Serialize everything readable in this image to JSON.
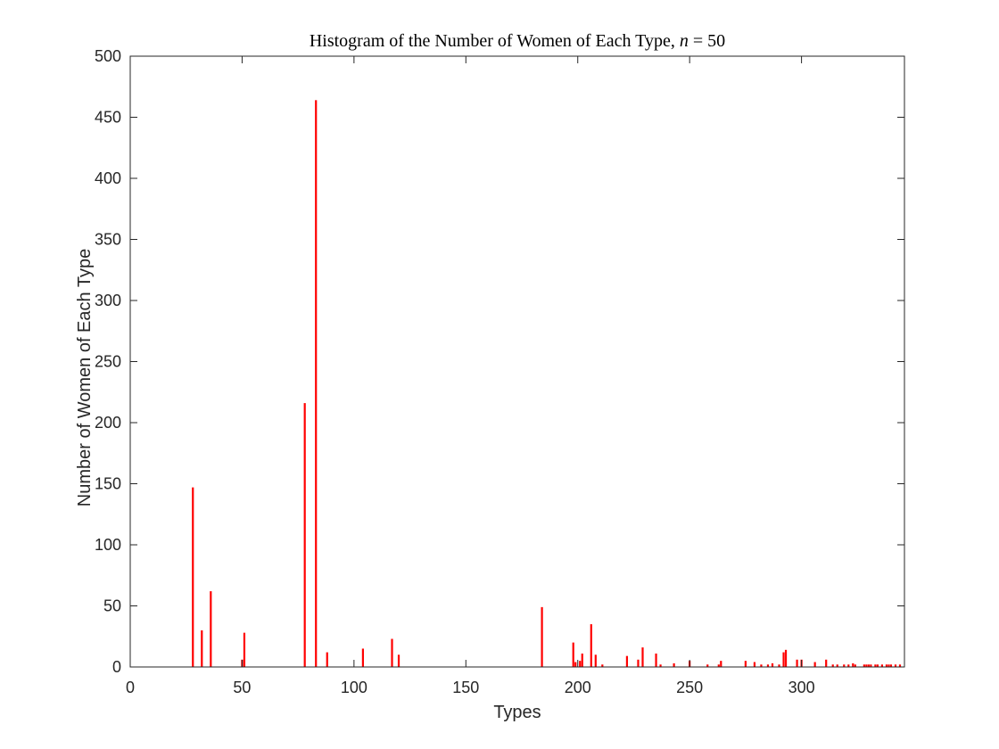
{
  "chart_data": {
    "type": "bar",
    "title_prefix": "Histogram of the Number of Women of Each Type, ",
    "title_var": "n",
    "title_eq": " = 50",
    "xlabel": "Types",
    "ylabel": "Number of Women of Each Type",
    "xlim": [
      0,
      346
    ],
    "ylim": [
      0,
      500
    ],
    "xticks": [
      0,
      50,
      100,
      150,
      200,
      250,
      300
    ],
    "yticks": [
      0,
      50,
      100,
      150,
      200,
      250,
      300,
      350,
      400,
      450,
      500
    ],
    "bar_color": "#ff0000",
    "grid": false,
    "x": [
      28,
      32,
      36,
      50,
      51,
      78,
      83,
      88,
      104,
      117,
      120,
      184,
      198,
      199,
      201,
      202,
      206,
      208,
      211,
      222,
      227,
      229,
      235,
      237,
      243,
      250,
      258,
      263,
      264,
      275,
      279,
      282,
      285,
      287,
      290,
      292,
      293,
      298,
      300,
      306,
      311,
      314,
      316,
      319,
      321,
      323,
      324,
      328,
      329,
      330,
      331,
      333,
      334,
      336,
      338,
      339,
      340,
      342,
      344
    ],
    "values": [
      147,
      30,
      62,
      6,
      28,
      216,
      464,
      12,
      15,
      23,
      10,
      49,
      20,
      4,
      5,
      11,
      35,
      10,
      2,
      9,
      6,
      16,
      11,
      2,
      3,
      5,
      2,
      2,
      5,
      5,
      4,
      2,
      2,
      3,
      2,
      12,
      14,
      6,
      6,
      4,
      6,
      2,
      2,
      2,
      2,
      3,
      2,
      2,
      2,
      2,
      2,
      2,
      2,
      2,
      2,
      2,
      2,
      2,
      2
    ]
  }
}
